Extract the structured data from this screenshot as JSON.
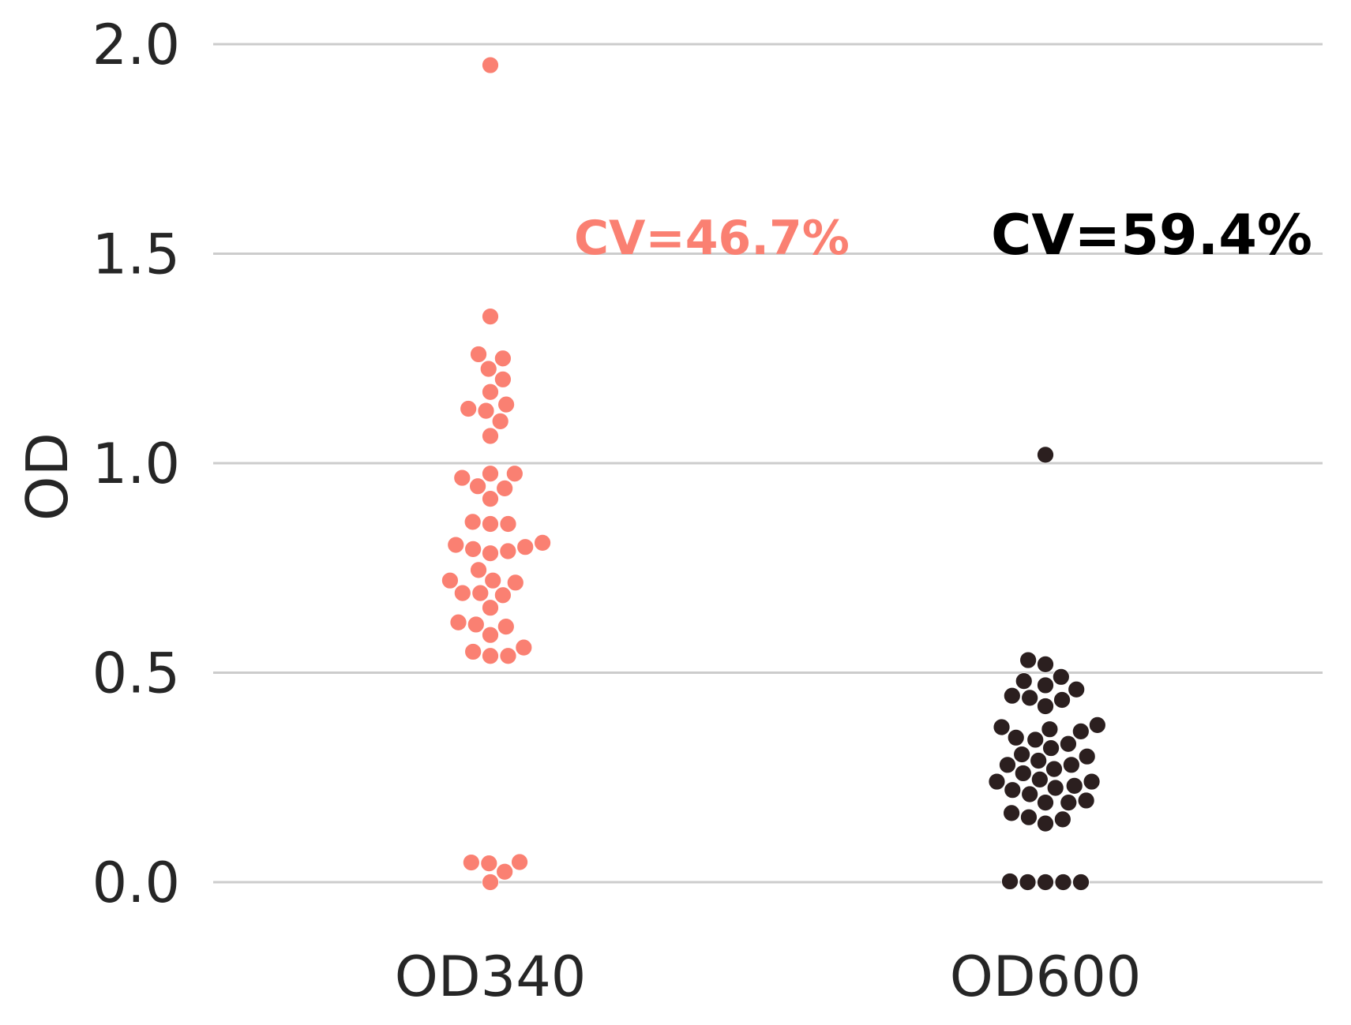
{
  "chart_data": {
    "type": "scatter",
    "subtype": "swarm",
    "title": "",
    "xlabel": "",
    "ylabel": "OD",
    "ylim": [
      -0.1,
      2.05
    ],
    "y_ticks": [
      "0.0",
      "0.5",
      "1.0",
      "1.5",
      "2.0"
    ],
    "grid": "horizontal",
    "categories": [
      "OD340",
      "OD600"
    ],
    "series": [
      {
        "category": "OD340",
        "color": "#fa8072",
        "cv_label": "CV=46.7%",
        "values": [
          0.0,
          0.025,
          0.045,
          0.047,
          0.048,
          0.54,
          0.54,
          0.55,
          0.56,
          0.59,
          0.61,
          0.615,
          0.62,
          0.655,
          0.685,
          0.69,
          0.69,
          0.715,
          0.72,
          0.72,
          0.745,
          0.785,
          0.79,
          0.795,
          0.8,
          0.805,
          0.81,
          0.855,
          0.855,
          0.86,
          0.915,
          0.94,
          0.945,
          0.965,
          0.975,
          0.975,
          1.065,
          1.1,
          1.125,
          1.13,
          1.14,
          1.17,
          1.2,
          1.225,
          1.25,
          1.26,
          1.35,
          1.95
        ]
      },
      {
        "category": "OD600",
        "color": "#2b1f1f",
        "cv_label": "CV=59.4%",
        "values": [
          0.0,
          0.0,
          0.0,
          0.0,
          0.002,
          0.14,
          0.15,
          0.155,
          0.165,
          0.19,
          0.19,
          0.195,
          0.21,
          0.22,
          0.225,
          0.23,
          0.24,
          0.24,
          0.245,
          0.26,
          0.27,
          0.28,
          0.28,
          0.29,
          0.3,
          0.305,
          0.32,
          0.33,
          0.34,
          0.345,
          0.36,
          0.365,
          0.37,
          0.375,
          0.42,
          0.435,
          0.44,
          0.445,
          0.46,
          0.47,
          0.48,
          0.49,
          0.52,
          0.53,
          1.02
        ]
      }
    ]
  }
}
